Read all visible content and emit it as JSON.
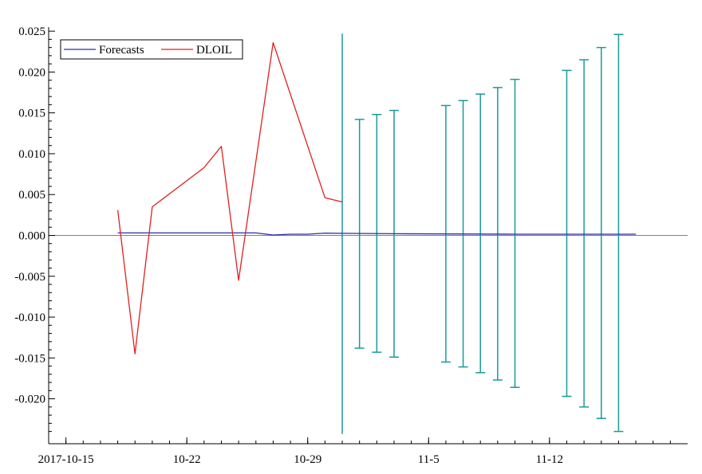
{
  "chart_data": {
    "type": "line",
    "title": "",
    "xlabel": "",
    "ylabel": "",
    "x_tick_labels": [
      "2017-10-15",
      "10-22",
      "10-29",
      "11-5",
      "11-12"
    ],
    "x_ticks": [
      "2017-10-15",
      "2017-10-22",
      "2017-10-29",
      "2017-11-05",
      "2017-11-12"
    ],
    "y_ticks": [
      "-0.020",
      "-0.015",
      "-0.010",
      "-0.005",
      "0.000",
      "0.005",
      "0.010",
      "0.015",
      "0.020",
      "0.025"
    ],
    "xlim": [
      "2017-10-14",
      "2017-11-20"
    ],
    "ylim": [
      -0.0255,
      0.0255
    ],
    "zero_line": true,
    "forecast_start": "2017-10-31",
    "legend": {
      "placement": "top-left",
      "entries": [
        "Forecasts",
        "DLOIL"
      ]
    },
    "colors": {
      "Forecasts": "#2b2bb5",
      "DLOIL": "#e02020",
      "bands": "#1a9a9a",
      "zero": "#808080"
    },
    "series": [
      {
        "name": "DLOIL",
        "points": [
          {
            "x": "2017-10-18",
            "y": 0.0031
          },
          {
            "x": "2017-10-19",
            "y": -0.0145
          },
          {
            "x": "2017-10-20",
            "y": 0.0035
          },
          {
            "x": "2017-10-23",
            "y": 0.0083
          },
          {
            "x": "2017-10-24",
            "y": 0.0109
          },
          {
            "x": "2017-10-25",
            "y": -0.0055
          },
          {
            "x": "2017-10-27",
            "y": 0.0236
          },
          {
            "x": "2017-10-30",
            "y": 0.0046
          },
          {
            "x": "2017-10-31",
            "y": 0.0041
          }
        ]
      },
      {
        "name": "Forecasts",
        "points": [
          {
            "x": "2017-10-18",
            "y": 0.0003
          },
          {
            "x": "2017-10-26",
            "y": 0.0003
          },
          {
            "x": "2017-10-27",
            "y": 5e-05
          },
          {
            "x": "2017-10-28",
            "y": 0.00015
          },
          {
            "x": "2017-10-29",
            "y": 0.00015
          },
          {
            "x": "2017-10-30",
            "y": 0.00028
          },
          {
            "x": "2017-10-31",
            "y": 0.00025
          },
          {
            "x": "2017-11-03",
            "y": 0.0002
          },
          {
            "x": "2017-11-10",
            "y": 0.00015
          },
          {
            "x": "2017-11-17",
            "y": 0.00015
          }
        ]
      }
    ],
    "error_bars": [
      {
        "x": "2017-11-01",
        "low": -0.0138,
        "high": 0.0142
      },
      {
        "x": "2017-11-02",
        "low": -0.0143,
        "high": 0.0148
      },
      {
        "x": "2017-11-03",
        "low": -0.0149,
        "high": 0.0153
      },
      {
        "x": "2017-11-06",
        "low": -0.0155,
        "high": 0.0159
      },
      {
        "x": "2017-11-07",
        "low": -0.0161,
        "high": 0.0165
      },
      {
        "x": "2017-11-08",
        "low": -0.0168,
        "high": 0.0173
      },
      {
        "x": "2017-11-09",
        "low": -0.0177,
        "high": 0.0181
      },
      {
        "x": "2017-11-10",
        "low": -0.0186,
        "high": 0.0191
      },
      {
        "x": "2017-11-13",
        "low": -0.0197,
        "high": 0.0202
      },
      {
        "x": "2017-11-14",
        "low": -0.021,
        "high": 0.0215
      },
      {
        "x": "2017-11-15",
        "low": -0.0224,
        "high": 0.023
      },
      {
        "x": "2017-11-16",
        "low": -0.024,
        "high": 0.0246
      }
    ]
  }
}
